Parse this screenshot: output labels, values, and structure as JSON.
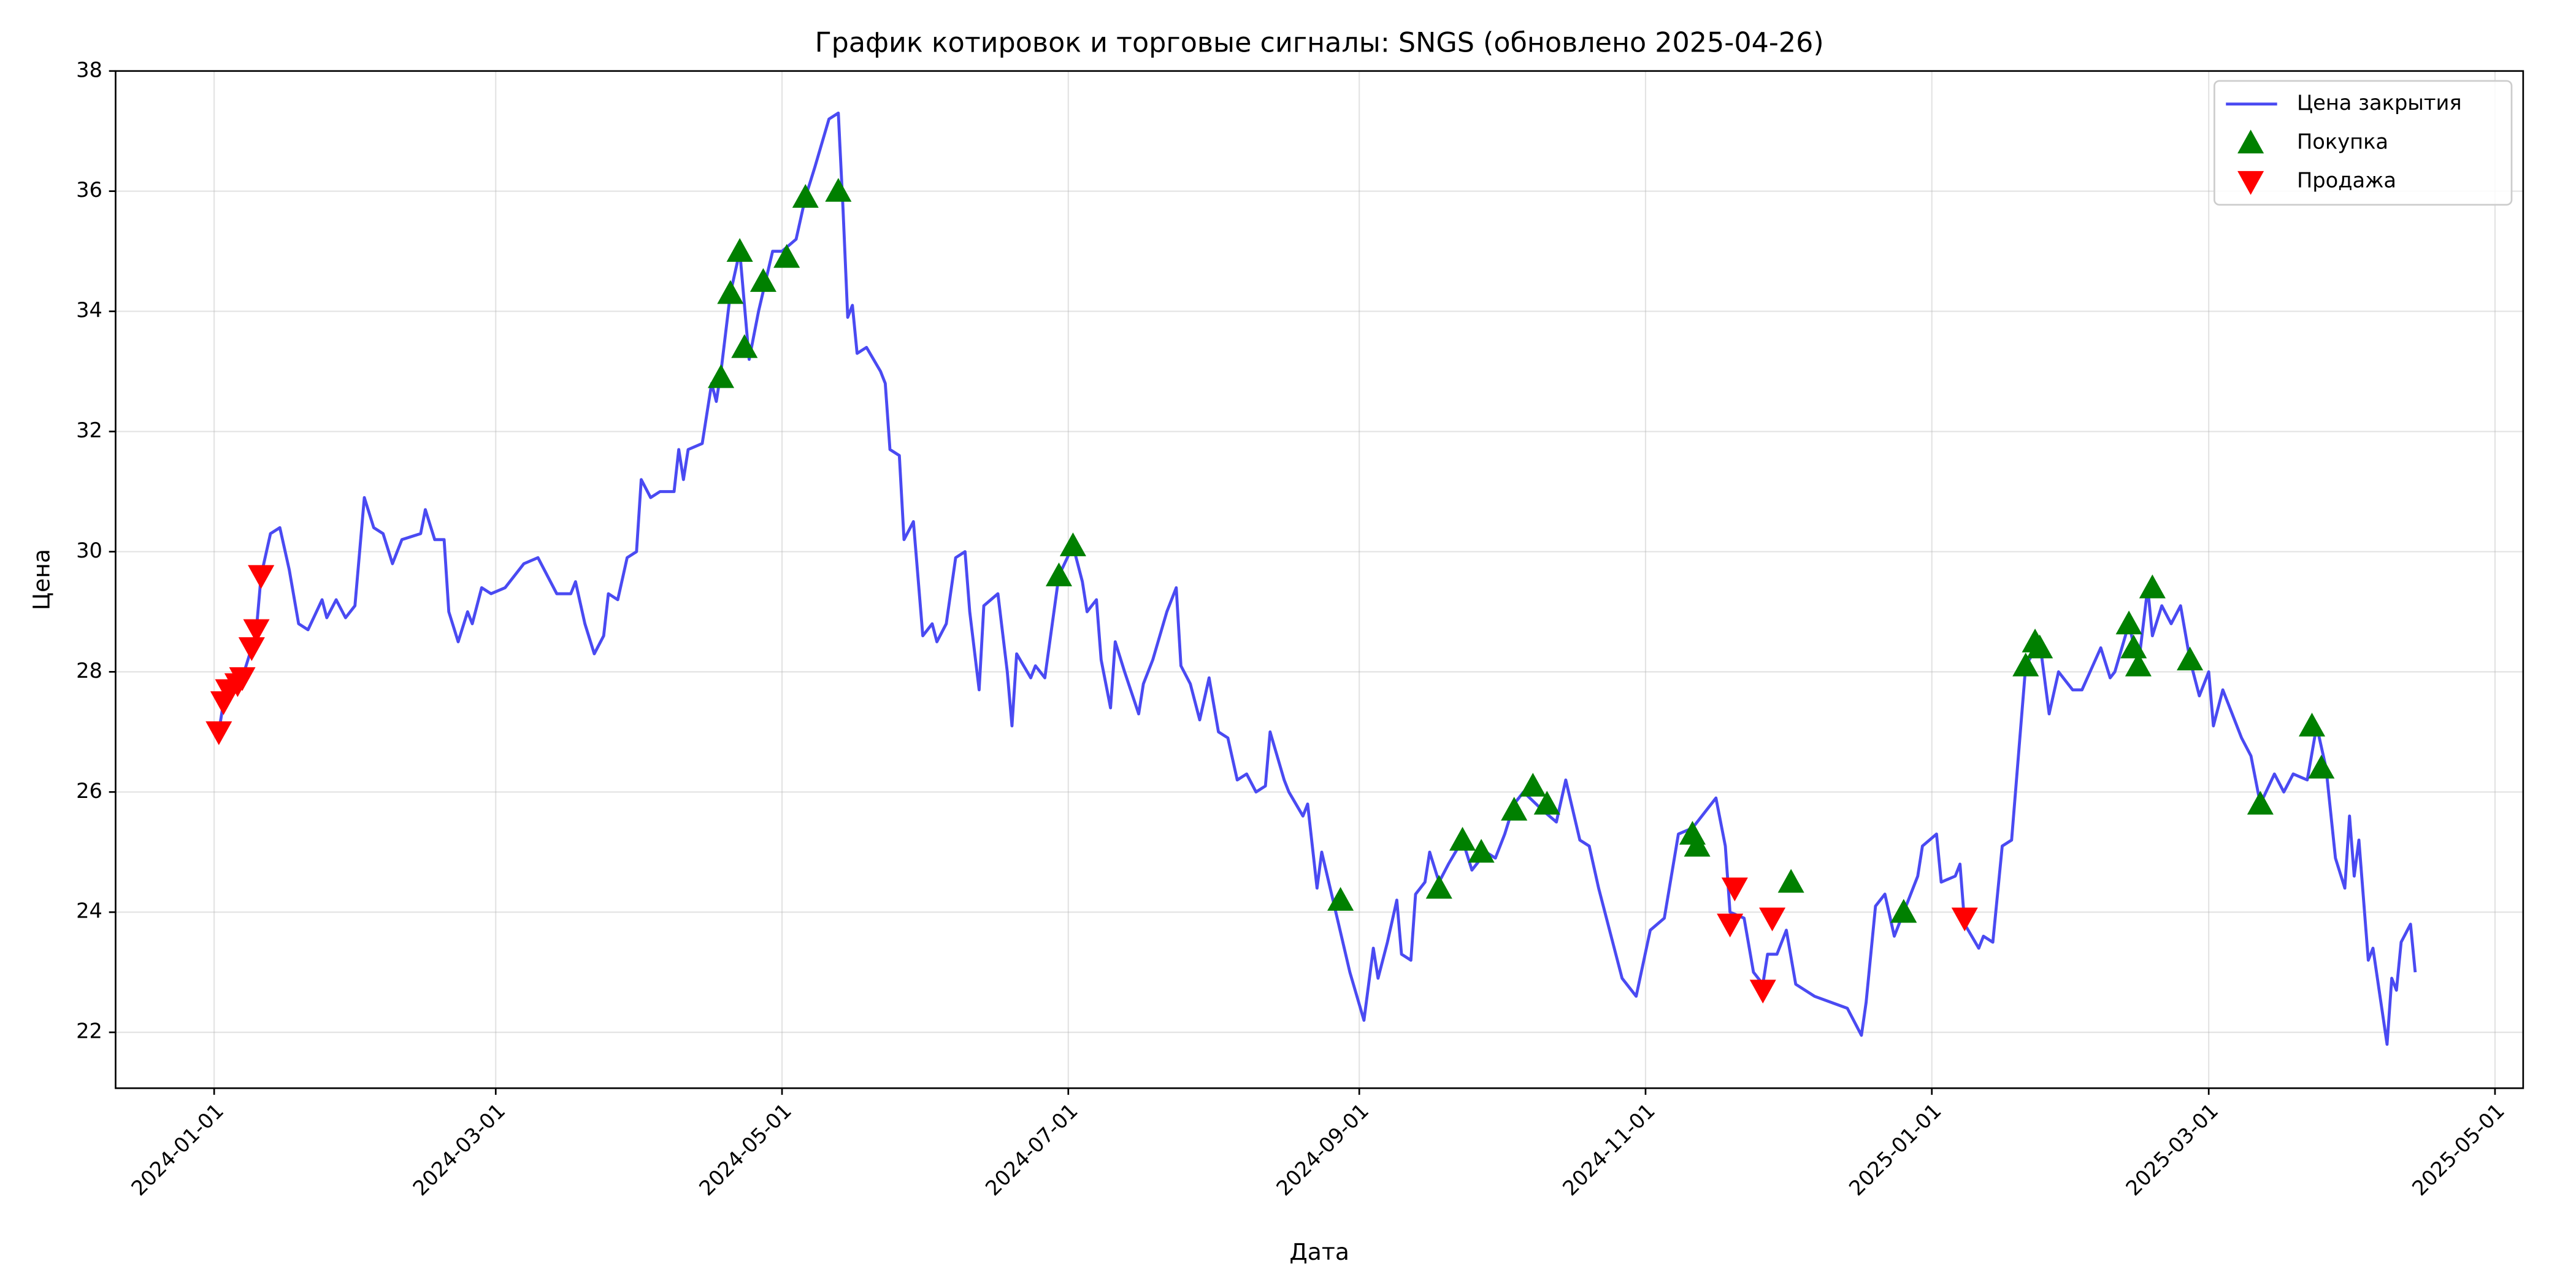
{
  "chart_data": {
    "type": "line",
    "title": "График котировок и торговые сигналы: SNGS (обновлено 2025-04-26)",
    "xlabel": "Дата",
    "ylabel": "Цена",
    "xlim": [
      "2023-12-11",
      "2025-05-07"
    ],
    "xticks": [
      "2024-01-01",
      "2024-03-01",
      "2024-05-01",
      "2024-07-01",
      "2024-09-01",
      "2024-11-01",
      "2025-01-01",
      "2025-03-01",
      "2025-05-01"
    ],
    "ylim": [
      21.07,
      38
    ],
    "yticks": [
      22,
      24,
      26,
      28,
      30,
      32,
      34,
      36,
      38
    ],
    "grid": true,
    "legend": "upper right",
    "series": [
      {
        "name": "Цена закрытия",
        "type": "line",
        "color": "#4a4af2",
        "x": [
          "2024-01-02",
          "2024-01-03",
          "2024-01-04",
          "2024-01-06",
          "2024-01-07",
          "2024-01-09",
          "2024-01-10",
          "2024-01-11",
          "2024-01-13",
          "2024-01-15",
          "2024-01-17",
          "2024-01-19",
          "2024-01-21",
          "2024-01-24",
          "2024-01-25",
          "2024-01-27",
          "2024-01-29",
          "2024-01-31",
          "2024-02-02",
          "2024-02-04",
          "2024-02-06",
          "2024-02-08",
          "2024-02-10",
          "2024-02-14",
          "2024-02-15",
          "2024-02-17",
          "2024-02-19",
          "2024-02-20",
          "2024-02-22",
          "2024-02-24",
          "2024-02-25",
          "2024-02-27",
          "2024-02-29",
          "2024-03-03",
          "2024-03-07",
          "2024-03-10",
          "2024-03-12",
          "2024-03-14",
          "2024-03-17",
          "2024-03-18",
          "2024-03-20",
          "2024-03-22",
          "2024-03-24",
          "2024-03-25",
          "2024-03-27",
          "2024-03-29",
          "2024-03-31",
          "2024-04-01",
          "2024-04-03",
          "2024-04-05",
          "2024-04-08",
          "2024-04-09",
          "2024-04-10",
          "2024-04-11",
          "2024-04-14",
          "2024-04-16",
          "2024-04-17",
          "2024-04-18",
          "2024-04-20",
          "2024-04-22",
          "2024-04-24",
          "2024-04-26",
          "2024-04-29",
          "2024-05-01",
          "2024-05-04",
          "2024-05-06",
          "2024-05-08",
          "2024-05-11",
          "2024-05-13",
          "2024-05-14",
          "2024-05-15",
          "2024-05-16",
          "2024-05-17",
          "2024-05-19",
          "2024-05-22",
          "2024-05-23",
          "2024-05-24",
          "2024-05-26",
          "2024-05-27",
          "2024-05-29",
          "2024-05-31",
          "2024-06-02",
          "2024-06-03",
          "2024-06-05",
          "2024-06-07",
          "2024-06-09",
          "2024-06-10",
          "2024-06-12",
          "2024-06-13",
          "2024-06-16",
          "2024-06-18",
          "2024-06-19",
          "2024-06-20",
          "2024-06-23",
          "2024-06-24",
          "2024-06-26",
          "2024-06-29",
          "2024-07-02",
          "2024-07-04",
          "2024-07-05",
          "2024-07-07",
          "2024-07-08",
          "2024-07-10",
          "2024-07-11",
          "2024-07-13",
          "2024-07-16",
          "2024-07-17",
          "2024-07-19",
          "2024-07-22",
          "2024-07-24",
          "2024-07-25",
          "2024-07-27",
          "2024-07-29",
          "2024-07-31",
          "2024-08-02",
          "2024-08-04",
          "2024-08-06",
          "2024-08-08",
          "2024-08-10",
          "2024-08-12",
          "2024-08-13",
          "2024-08-16",
          "2024-08-17",
          "2024-08-20",
          "2024-08-21",
          "2024-08-23",
          "2024-08-24",
          "2024-08-27",
          "2024-08-30",
          "2024-09-02",
          "2024-09-04",
          "2024-09-05",
          "2024-09-07",
          "2024-09-09",
          "2024-09-10",
          "2024-09-12",
          "2024-09-13",
          "2024-09-15",
          "2024-09-16",
          "2024-09-18",
          "2024-09-20",
          "2024-09-23",
          "2024-09-25",
          "2024-09-28",
          "2024-09-30",
          "2024-10-02",
          "2024-10-04",
          "2024-10-06",
          "2024-10-10",
          "2024-10-13",
          "2024-10-15",
          "2024-10-18",
          "2024-10-20",
          "2024-10-22",
          "2024-10-25",
          "2024-10-27",
          "2024-10-30",
          "2024-11-02",
          "2024-11-05",
          "2024-11-08",
          "2024-11-11",
          "2024-11-13",
          "2024-11-16",
          "2024-11-18",
          "2024-11-19",
          "2024-11-22",
          "2024-11-24",
          "2024-11-26",
          "2024-11-27",
          "2024-11-29",
          "2024-12-01",
          "2024-12-03",
          "2024-12-07",
          "2024-12-14",
          "2024-12-17",
          "2024-12-18",
          "2024-12-20",
          "2024-12-22",
          "2024-12-24",
          "2024-12-26",
          "2024-12-29",
          "2024-12-30",
          "2025-01-02",
          "2025-01-03",
          "2025-01-06",
          "2025-01-07",
          "2025-01-08",
          "2025-01-11",
          "2025-01-12",
          "2025-01-14",
          "2025-01-16",
          "2025-01-18",
          "2025-01-21",
          "2025-01-24",
          "2025-01-26",
          "2025-01-28",
          "2025-01-31",
          "2025-02-02",
          "2025-02-06",
          "2025-02-08",
          "2025-02-09",
          "2025-02-12",
          "2025-02-14",
          "2025-02-16",
          "2025-02-17",
          "2025-02-19",
          "2025-02-21",
          "2025-02-23",
          "2025-02-25",
          "2025-02-27",
          "2025-03-01",
          "2025-03-02",
          "2025-03-04",
          "2025-03-06",
          "2025-03-08",
          "2025-03-10",
          "2025-03-12",
          "2025-03-15",
          "2025-03-17",
          "2025-03-19",
          "2025-03-22",
          "2025-03-24",
          "2025-03-26",
          "2025-03-28",
          "2025-03-30",
          "2025-03-31",
          "2025-04-01",
          "2025-04-02",
          "2025-04-04",
          "2025-04-05",
          "2025-04-08",
          "2025-04-09",
          "2025-04-10",
          "2025-04-11",
          "2025-04-13",
          "2025-04-14"
        ],
        "values": [
          27.0,
          27.5,
          27.7,
          27.8,
          27.9,
          28.4,
          28.7,
          29.6,
          30.3,
          30.4,
          29.7,
          28.8,
          28.7,
          29.2,
          28.9,
          29.2,
          28.9,
          29.1,
          30.9,
          30.4,
          30.3,
          29.8,
          30.2,
          30.3,
          30.7,
          30.2,
          30.2,
          29.0,
          28.5,
          29.0,
          28.8,
          29.4,
          29.3,
          29.4,
          29.8,
          29.9,
          29.6,
          29.3,
          29.3,
          29.5,
          28.8,
          28.3,
          28.6,
          29.3,
          29.2,
          29.9,
          30.0,
          31.2,
          30.9,
          31.0,
          31.0,
          31.7,
          31.2,
          31.7,
          31.8,
          32.8,
          32.5,
          33.0,
          34.3,
          35.0,
          33.2,
          34.0,
          35.0,
          35.0,
          35.2,
          35.9,
          36.4,
          37.2,
          37.3,
          35.7,
          33.9,
          34.1,
          33.3,
          33.4,
          33.0,
          32.8,
          31.7,
          31.6,
          30.2,
          30.5,
          28.6,
          28.8,
          28.5,
          28.8,
          29.9,
          30.0,
          29.0,
          27.7,
          29.1,
          29.3,
          28.0,
          27.1,
          28.3,
          27.9,
          28.1,
          27.9,
          29.6,
          30.1,
          29.5,
          29.0,
          29.2,
          28.2,
          27.4,
          28.5,
          28.0,
          27.3,
          27.8,
          28.2,
          29.0,
          29.4,
          28.1,
          27.8,
          27.2,
          27.9,
          27.0,
          26.9,
          26.2,
          26.3,
          26.0,
          26.1,
          27.0,
          26.2,
          26.0,
          25.6,
          25.8,
          24.4,
          25.0,
          24.0,
          23.0,
          22.2,
          23.4,
          22.9,
          23.5,
          24.2,
          23.3,
          23.2,
          24.3,
          24.5,
          25.0,
          24.5,
          24.8,
          25.2,
          24.7,
          25.0,
          24.9,
          25.3,
          25.8,
          26.0,
          25.7,
          25.5,
          26.2,
          25.2,
          25.1,
          24.4,
          23.5,
          22.9,
          22.6,
          23.7,
          23.9,
          25.3,
          25.4,
          25.6,
          25.9,
          25.1,
          24.0,
          23.9,
          23.0,
          22.8,
          23.3,
          23.3,
          23.7,
          22.8,
          22.6,
          22.4,
          21.95,
          22.5,
          24.1,
          24.3,
          23.6,
          24.0,
          24.6,
          25.1,
          25.3,
          24.5,
          24.6,
          24.8,
          23.8,
          23.4,
          23.6,
          23.5,
          25.1,
          25.2,
          28.1,
          28.5,
          27.3,
          28.0,
          27.7,
          27.7,
          28.4,
          27.9,
          28.0,
          28.8,
          28.1,
          29.4,
          28.6,
          29.1,
          28.8,
          29.1,
          28.2,
          27.6,
          28.0,
          27.1,
          27.7,
          27.3,
          26.9,
          26.6,
          25.8,
          26.3,
          26.0,
          26.3,
          26.2,
          27.1,
          26.4,
          24.9,
          24.4,
          25.6,
          24.6,
          25.2,
          23.2,
          23.4,
          21.8,
          22.9,
          22.7,
          23.5,
          23.8,
          23.0
        ]
      },
      {
        "name": "Покупка",
        "type": "scatter",
        "marker": "triangle-up",
        "color": "#008000",
        "x": [
          "2024-04-18",
          "2024-04-20",
          "2024-04-22",
          "2024-04-23",
          "2024-04-27",
          "2024-05-02",
          "2024-05-06",
          "2024-05-13",
          "2024-06-29",
          "2024-07-02",
          "2024-08-28",
          "2024-09-18",
          "2024-09-23",
          "2024-09-27",
          "2024-10-04",
          "2024-10-08",
          "2024-10-11",
          "2024-11-11",
          "2024-11-12",
          "2024-12-02",
          "2024-12-26",
          "2025-01-21",
          "2025-01-23",
          "2025-01-24",
          "2025-02-12",
          "2025-02-13",
          "2025-02-14",
          "2025-02-17",
          "2025-02-25",
          "2025-03-12",
          "2025-03-23",
          "2025-03-25"
        ],
        "values": [
          32.9,
          34.3,
          35.0,
          33.4,
          34.5,
          34.9,
          35.9,
          36.0,
          29.6,
          30.1,
          24.2,
          24.4,
          25.2,
          25.0,
          25.7,
          26.1,
          25.8,
          25.3,
          25.1,
          24.5,
          24.0,
          28.1,
          28.5,
          28.4,
          28.8,
          28.4,
          28.1,
          29.4,
          28.2,
          25.8,
          27.1,
          26.4
        ]
      },
      {
        "name": "Продажа",
        "type": "scatter",
        "marker": "triangle-down",
        "color": "#ff0000",
        "x": [
          "2024-01-02",
          "2024-01-03",
          "2024-01-04",
          "2024-01-06",
          "2024-01-07",
          "2024-01-09",
          "2024-01-10",
          "2024-01-11",
          "2024-11-19",
          "2024-11-20",
          "2024-11-26",
          "2024-11-28",
          "2025-01-08"
        ],
        "values": [
          27.0,
          27.5,
          27.7,
          27.8,
          27.9,
          28.4,
          28.7,
          29.6,
          23.8,
          24.4,
          22.7,
          23.9,
          23.9
        ]
      }
    ]
  }
}
